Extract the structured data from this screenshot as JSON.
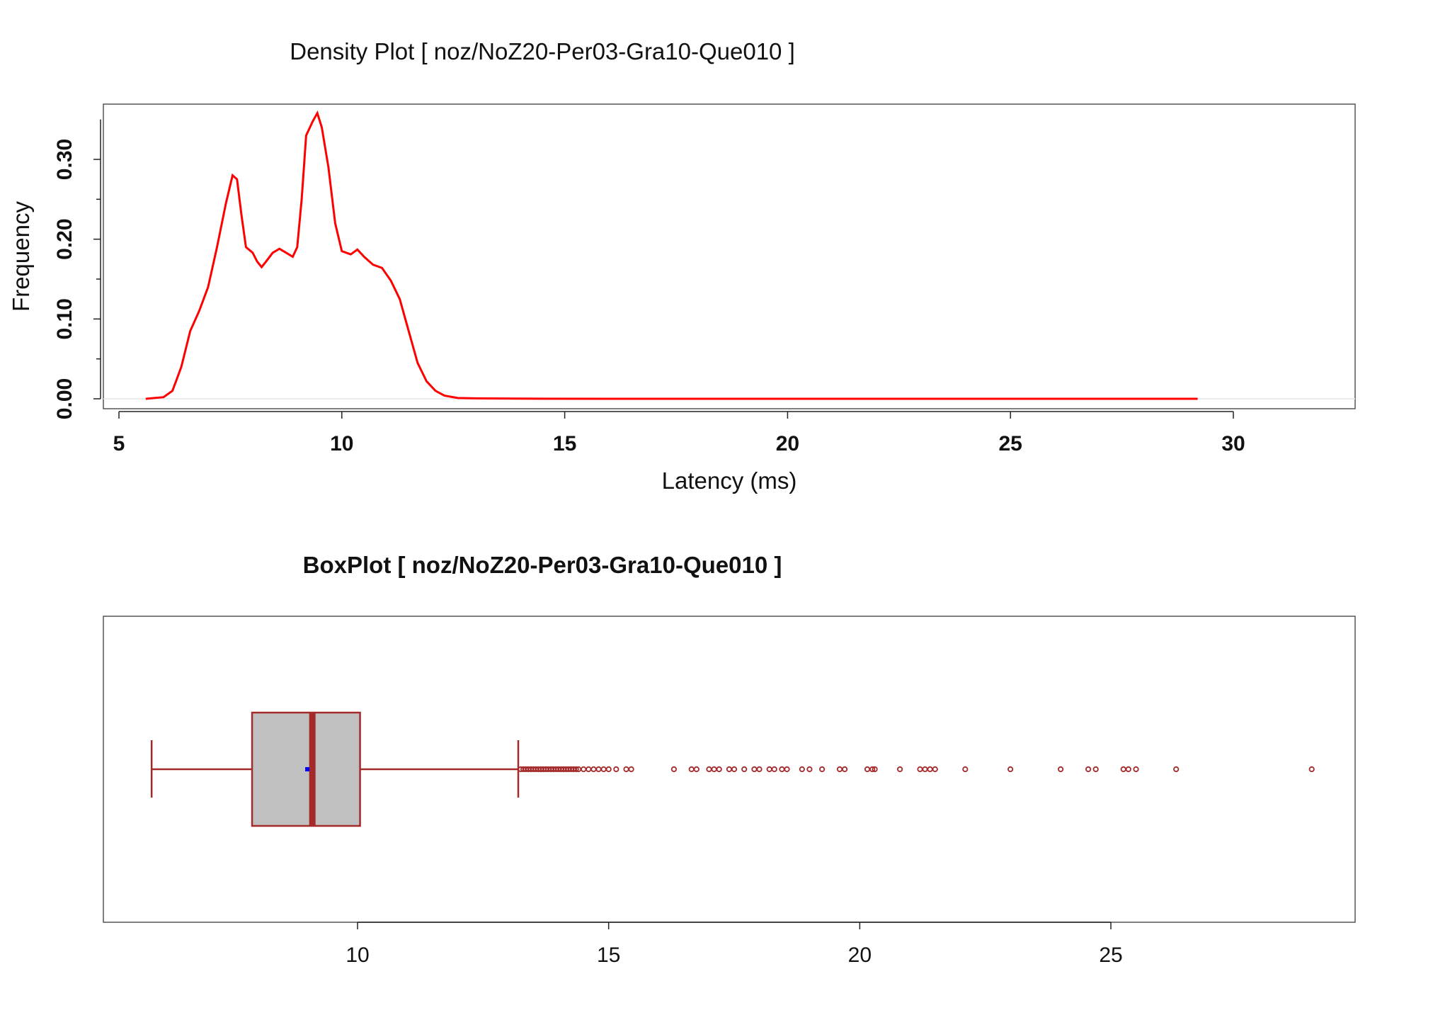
{
  "chart_data": [
    {
      "type": "line",
      "title": "Density Plot [ noz/NoZ20-Per03-Gra10-Que010 ]",
      "xlabel": "Latency (ms)",
      "ylabel": "Frequency",
      "xlim": [
        5,
        30
      ],
      "ylim": [
        0,
        0.35
      ],
      "x_ticks": [
        "5",
        "10",
        "15",
        "20",
        "25",
        "30"
      ],
      "y_ticks": [
        "0.00",
        "0.10",
        "0.20",
        "0.30"
      ],
      "y_tick_values": [
        0,
        0.1,
        0.2,
        0.3
      ],
      "y_minor_tick_values": [
        0.05,
        0.15,
        0.25
      ],
      "line_color": "#ff0000",
      "series": [
        {
          "x": [
            5.6,
            6.0,
            6.2,
            6.4,
            6.6,
            6.8,
            7.0,
            7.2,
            7.4,
            7.55,
            7.65,
            7.75,
            7.85,
            8.0,
            8.1,
            8.2,
            8.3,
            8.45,
            8.6,
            8.75,
            8.9,
            9.0,
            9.1,
            9.2,
            9.35,
            9.45,
            9.55,
            9.7,
            9.85,
            10.0,
            10.2,
            10.35,
            10.5,
            10.7,
            10.9,
            11.1,
            11.3,
            11.5,
            11.7,
            11.9,
            12.1,
            12.3,
            12.6,
            13.0,
            14.0,
            16.0,
            18.0,
            20.0,
            22.0,
            24.0,
            26.0,
            28.0,
            29.2
          ],
          "y": [
            0.0,
            0.002,
            0.01,
            0.04,
            0.085,
            0.11,
            0.14,
            0.19,
            0.245,
            0.28,
            0.275,
            0.23,
            0.19,
            0.183,
            0.172,
            0.165,
            0.172,
            0.183,
            0.188,
            0.183,
            0.178,
            0.19,
            0.25,
            0.33,
            0.348,
            0.358,
            0.34,
            0.29,
            0.22,
            0.185,
            0.181,
            0.187,
            0.178,
            0.168,
            0.164,
            0.148,
            0.125,
            0.085,
            0.045,
            0.022,
            0.01,
            0.004,
            0.001,
            0.0005,
            0.0002,
            0.0,
            0.0,
            0.0,
            0.0,
            0.0,
            0.0,
            0.0,
            0.0
          ]
        }
      ]
    },
    {
      "type": "box",
      "title": "BoxPlot [ noz/NoZ20-Per03-Gra10-Que010 ]",
      "xlim": [
        5,
        30
      ],
      "x_ticks": [
        "10",
        "15",
        "20",
        "25"
      ],
      "box_fill": "#c0c0c0",
      "stroke_color": "#a52a2a",
      "mean_color": "#0000ff",
      "whisker_low": 5.9,
      "q1": 7.9,
      "median": 9.1,
      "mean": 9.0,
      "q3": 10.05,
      "whisker_high": 13.2,
      "outliers": [
        13.25,
        13.3,
        13.35,
        13.4,
        13.45,
        13.5,
        13.55,
        13.6,
        13.65,
        13.7,
        13.75,
        13.8,
        13.85,
        13.9,
        13.95,
        14.0,
        14.05,
        14.1,
        14.15,
        14.2,
        14.25,
        14.3,
        14.35,
        14.4,
        14.5,
        14.6,
        14.7,
        14.8,
        14.9,
        15.0,
        15.15,
        15.35,
        15.45,
        16.3,
        16.65,
        16.75,
        17.0,
        17.1,
        17.2,
        17.4,
        17.5,
        17.7,
        17.9,
        18.0,
        18.2,
        18.3,
        18.45,
        18.55,
        18.85,
        19.0,
        19.25,
        19.6,
        19.7,
        20.15,
        20.25,
        20.3,
        20.8,
        21.2,
        21.3,
        21.4,
        21.5,
        22.1,
        23.0,
        24.0,
        24.55,
        24.7,
        25.25,
        25.35,
        25.5,
        26.3,
        29.0
      ]
    }
  ]
}
